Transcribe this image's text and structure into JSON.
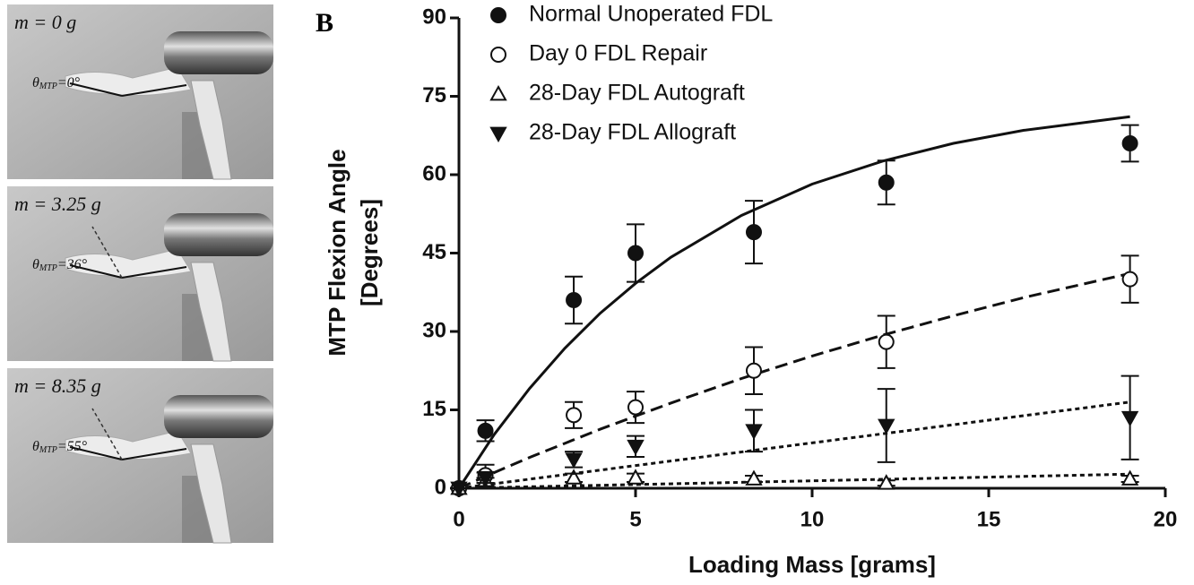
{
  "panel_label": "B",
  "panels": [
    {
      "mass_label": "m = 0 g",
      "angle_symbol": "θ",
      "angle_subscript": "MTP",
      "angle_value": "=0°"
    },
    {
      "mass_label": "m = 3.25 g",
      "angle_symbol": "θ",
      "angle_subscript": "MTP",
      "angle_value": "=36°"
    },
    {
      "mass_label": "m = 8.35 g",
      "angle_symbol": "θ",
      "angle_subscript": "MTP",
      "angle_value": "=55°"
    }
  ],
  "chart_data": {
    "type": "scatter",
    "x_label": "Loading Mass [grams]",
    "y_label": [
      "MTP Flexion Angle",
      "[Degrees]"
    ],
    "xlim": [
      0,
      20
    ],
    "xticks": [
      0,
      5,
      10,
      15,
      20
    ],
    "ylim": [
      0,
      90
    ],
    "yticks": [
      0,
      15,
      30,
      45,
      60,
      75,
      90
    ],
    "x": [
      0,
      0.75,
      3.25,
      5,
      8.35,
      12.1,
      19
    ],
    "series": [
      {
        "name": "Normal Unoperated FDL",
        "color": "#111111",
        "marker": "filled-circle",
        "dash": "solid",
        "values": [
          0,
          11,
          36,
          45,
          49,
          58.5,
          66
        ],
        "errors": [
          0,
          2,
          4.5,
          5.5,
          6,
          4.2,
          3.5
        ],
        "fit_x": [
          0,
          1,
          2,
          3,
          4,
          5,
          6,
          8,
          10,
          12,
          14,
          16,
          19
        ],
        "fit_values": [
          0,
          10.3,
          19.1,
          26.8,
          33.5,
          39.2,
          44.2,
          52.2,
          58.2,
          62.6,
          66.0,
          68.5,
          71.1
        ]
      },
      {
        "name": "Day 0 FDL Repair",
        "color": "#111111",
        "marker": "open-circle",
        "dash": "long",
        "values": [
          0,
          2.5,
          14,
          15.5,
          22.5,
          28,
          40
        ],
        "errors": [
          0,
          2,
          2.5,
          3,
          4.5,
          5,
          4.5
        ],
        "fit_x": [
          0,
          1,
          2,
          3,
          4,
          5,
          6,
          8,
          10,
          12,
          14,
          16,
          19
        ],
        "fit_values": [
          0,
          3.0,
          5.9,
          8.6,
          11.3,
          13.8,
          16.3,
          21.0,
          25.3,
          29.3,
          33.0,
          36.5,
          41.1
        ]
      },
      {
        "name": "28-Day FDL Autograft",
        "color": "#111111",
        "marker": "open-triangle",
        "dash": "short",
        "values": [
          0,
          1.5,
          2,
          2,
          1.8,
          1,
          1.8
        ],
        "errors": [
          0,
          0.5,
          0.8,
          0.8,
          0.6,
          0.5,
          0.6
        ],
        "fit_x": [
          0,
          19
        ],
        "fit_values": [
          0,
          2.7
        ]
      },
      {
        "name": "28-Day FDL Allograft",
        "color": "#111111",
        "marker": "filled-down-triangle",
        "dash": "short",
        "values": [
          0,
          2,
          5.5,
          8,
          11,
          12,
          13.5
        ],
        "errors": [
          0,
          1,
          1.5,
          2,
          4,
          7,
          8
        ],
        "fit_x": [
          0,
          19
        ],
        "fit_values": [
          0,
          16.5
        ]
      }
    ]
  }
}
